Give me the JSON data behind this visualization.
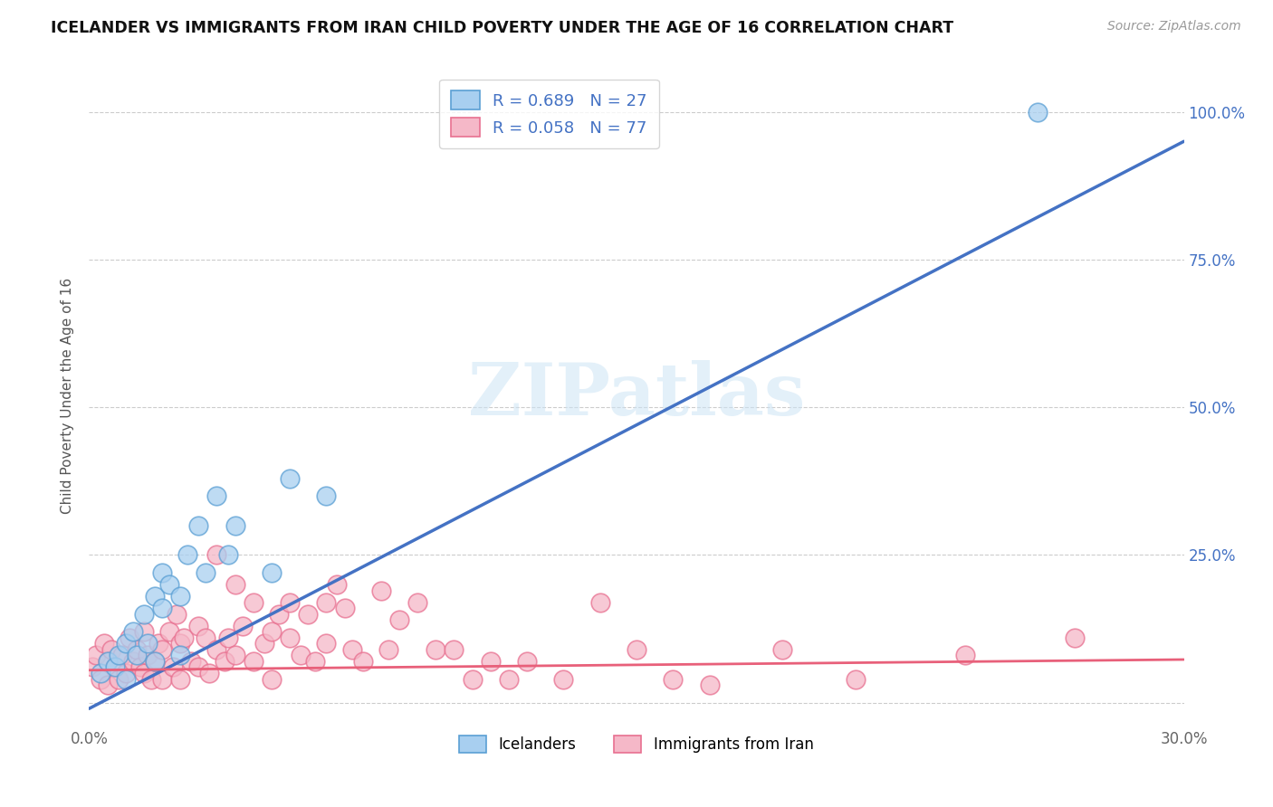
{
  "title": "ICELANDER VS IMMIGRANTS FROM IRAN CHILD POVERTY UNDER THE AGE OF 16 CORRELATION CHART",
  "source": "Source: ZipAtlas.com",
  "ylabel": "Child Poverty Under the Age of 16",
  "xmin": 0.0,
  "xmax": 0.3,
  "ymin": -0.04,
  "ymax": 1.08,
  "xticks": [
    0.0,
    0.05,
    0.1,
    0.15,
    0.2,
    0.25,
    0.3
  ],
  "xtick_labels": [
    "0.0%",
    "",
    "",
    "",
    "",
    "",
    "30.0%"
  ],
  "yticks": [
    0.0,
    0.25,
    0.5,
    0.75,
    1.0
  ],
  "ytick_labels_right": [
    "",
    "25.0%",
    "50.0%",
    "75.0%",
    "100.0%"
  ],
  "icelander_color": "#a8cff0",
  "iran_color": "#f5b8c8",
  "icelander_edge_color": "#5a9fd4",
  "iran_edge_color": "#e87090",
  "icelander_line_color": "#4472c4",
  "iran_line_color": "#e8607a",
  "right_tick_color": "#4472c4",
  "watermark": "ZIPatlas",
  "legend_icelander_R": "R = 0.689",
  "legend_icelander_N": "N = 27",
  "legend_iran_R": "R = 0.058",
  "legend_iran_N": "N = 77",
  "icelander_line_slope": 3.2,
  "icelander_line_intercept": -0.01,
  "iran_line_slope": 0.06,
  "iran_line_intercept": 0.055,
  "icelander_scatter_x": [
    0.003,
    0.005,
    0.007,
    0.008,
    0.01,
    0.01,
    0.012,
    0.013,
    0.015,
    0.016,
    0.018,
    0.018,
    0.02,
    0.02,
    0.022,
    0.025,
    0.025,
    0.027,
    0.03,
    0.032,
    0.035,
    0.038,
    0.04,
    0.05,
    0.055,
    0.065,
    0.26
  ],
  "icelander_scatter_y": [
    0.05,
    0.07,
    0.06,
    0.08,
    0.1,
    0.04,
    0.12,
    0.08,
    0.15,
    0.1,
    0.18,
    0.07,
    0.16,
    0.22,
    0.2,
    0.18,
    0.08,
    0.25,
    0.3,
    0.22,
    0.35,
    0.25,
    0.3,
    0.22,
    0.38,
    0.35,
    1.0
  ],
  "iran_scatter_x": [
    0.001,
    0.002,
    0.003,
    0.004,
    0.005,
    0.005,
    0.006,
    0.007,
    0.008,
    0.009,
    0.01,
    0.011,
    0.012,
    0.013,
    0.014,
    0.015,
    0.015,
    0.016,
    0.017,
    0.018,
    0.019,
    0.02,
    0.02,
    0.022,
    0.023,
    0.024,
    0.025,
    0.025,
    0.026,
    0.028,
    0.03,
    0.03,
    0.032,
    0.033,
    0.035,
    0.035,
    0.037,
    0.038,
    0.04,
    0.04,
    0.042,
    0.045,
    0.045,
    0.048,
    0.05,
    0.05,
    0.052,
    0.055,
    0.055,
    0.058,
    0.06,
    0.062,
    0.065,
    0.065,
    0.068,
    0.07,
    0.072,
    0.075,
    0.08,
    0.082,
    0.085,
    0.09,
    0.095,
    0.1,
    0.105,
    0.11,
    0.115,
    0.12,
    0.13,
    0.14,
    0.15,
    0.16,
    0.17,
    0.19,
    0.21,
    0.24,
    0.27
  ],
  "iran_scatter_y": [
    0.06,
    0.08,
    0.04,
    0.1,
    0.07,
    0.03,
    0.09,
    0.06,
    0.04,
    0.08,
    0.05,
    0.11,
    0.07,
    0.09,
    0.06,
    0.05,
    0.12,
    0.08,
    0.04,
    0.07,
    0.1,
    0.09,
    0.04,
    0.12,
    0.06,
    0.15,
    0.1,
    0.04,
    0.11,
    0.07,
    0.13,
    0.06,
    0.11,
    0.05,
    0.25,
    0.09,
    0.07,
    0.11,
    0.2,
    0.08,
    0.13,
    0.07,
    0.17,
    0.1,
    0.12,
    0.04,
    0.15,
    0.11,
    0.17,
    0.08,
    0.15,
    0.07,
    0.17,
    0.1,
    0.2,
    0.16,
    0.09,
    0.07,
    0.19,
    0.09,
    0.14,
    0.17,
    0.09,
    0.09,
    0.04,
    0.07,
    0.04,
    0.07,
    0.04,
    0.17,
    0.09,
    0.04,
    0.03,
    0.09,
    0.04,
    0.08,
    0.11
  ],
  "background_color": "#ffffff",
  "grid_color": "#cccccc"
}
